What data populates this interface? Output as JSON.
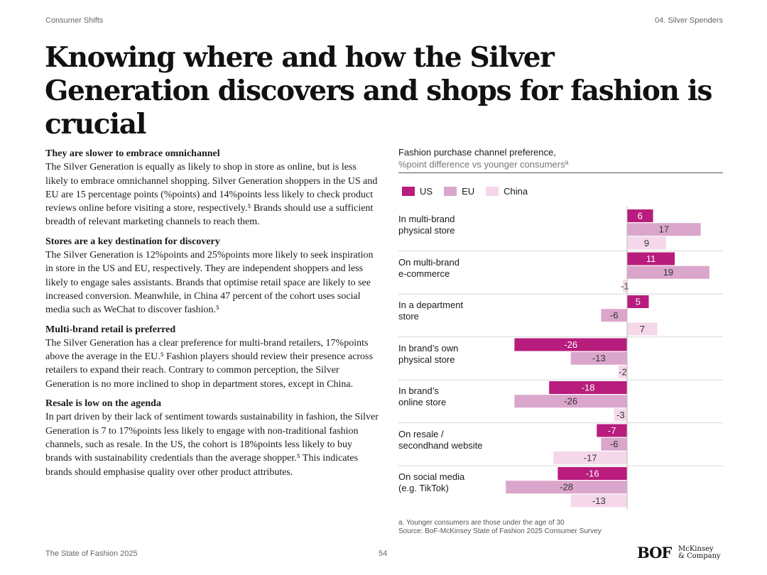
{
  "header": {
    "left": "Consumer Shifts",
    "right": "04. Silver Spenders"
  },
  "title": "Knowing where and how the Silver Generation discovers and shops for fashion is crucial",
  "sections": [
    {
      "heading": "They are slower to embrace omnichannel",
      "body": "The Silver Generation is equally as likely to shop in store as online, but is less likely to embrace omnichannel shopping. Silver Generation shoppers in the US and EU are 15 percentage points (%points) and 14%points less likely to check product reviews online before visiting a store, respectively.⁵ Brands should use a sufficient breadth of relevant marketing channels to reach them."
    },
    {
      "heading": "Stores are a key destination for discovery",
      "body": "The Silver Generation is 12%points and 25%points more likely to seek inspiration in store in the US and EU, respectively. They are independent shoppers and less likely to engage sales assistants. Brands that optimise retail space are likely to see increased conversion. Meanwhile, in China 47 percent of the cohort uses social media such as WeChat to discover fashion.⁵"
    },
    {
      "heading": "Multi-brand retail is preferred",
      "body": "The Silver Generation has a clear preference for multi-brand retailers, 17%points above the average in the EU.⁵ Fashion players should review their presence across retailers to expand their reach. Contrary to common perception, the Silver Generation is no more inclined to shop in department stores, except in China."
    },
    {
      "heading": "Resale is low on the agenda",
      "body": "In part driven by their lack of sentiment towards sustainability in fashion, the Silver Generation is 7 to 17%points less likely to engage with non-traditional fashion channels, such as resale. In the US, the cohort is 18%points less likely to buy brands with sustainability credentials than the average shopper.⁵ This indicates brands should emphasise quality over other product attributes."
    }
  ],
  "chart_data": {
    "type": "bar",
    "orientation": "horizontal",
    "title": "Fashion purchase channel preference,",
    "subtitle": "%point difference vs younger consumersª",
    "categories": [
      "In multi-brand\nphysical store",
      "On multi-brand\ne-commerce",
      "In a department\nstore",
      "In brand’s own\nphysical store",
      "In brand’s\nonline store",
      "On resale /\nsecondhand website",
      "On social media\n(e.g. TikTok)"
    ],
    "series": [
      {
        "name": "US",
        "color": "#b81c7c",
        "values": [
          6,
          11,
          5,
          -26,
          -18,
          -7,
          -16
        ]
      },
      {
        "name": "EU",
        "color": "#dba6cb",
        "values": [
          17,
          19,
          -6,
          -13,
          -26,
          -6,
          -28
        ]
      },
      {
        "name": "China",
        "color": "#f4d8ea",
        "values": [
          9,
          -1,
          7,
          -2,
          -3,
          -17,
          -13
        ]
      }
    ],
    "legend_position": "top-left"
  },
  "footnote": {
    "note": "a. Younger consumers are those under the age of 30",
    "source": "Source: BoF-McKinsey State of Fashion 2025 Consumer Survey"
  },
  "footer": {
    "left": "The State of Fashion 2025",
    "page": "54",
    "logo_bof": "BOF",
    "logo_mck": "McKinsey\n& Company"
  }
}
